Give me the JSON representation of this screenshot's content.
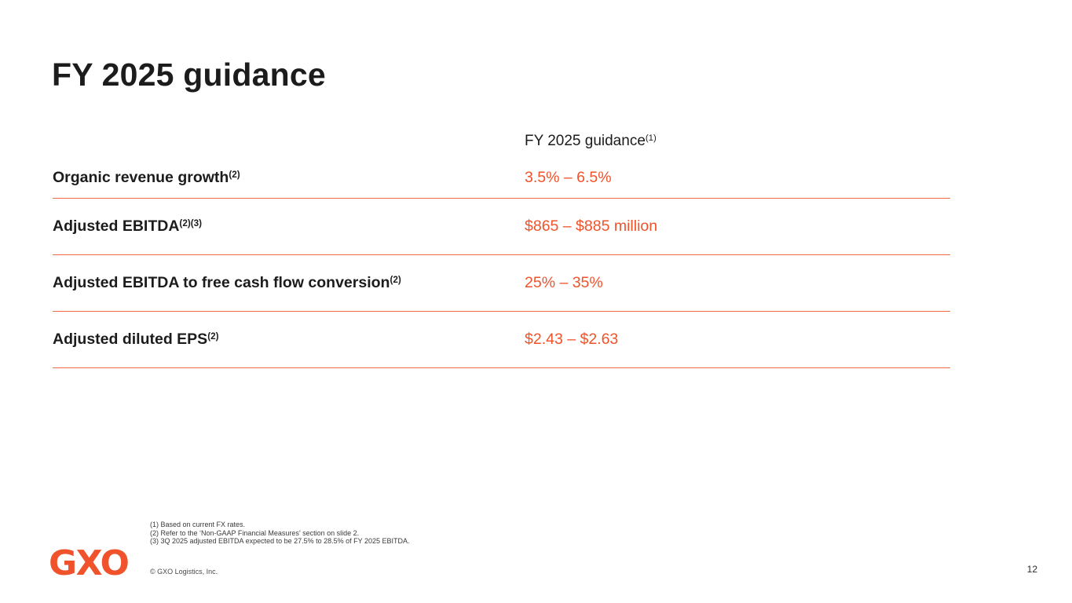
{
  "slide": {
    "title": "FY 2025 guidance",
    "logo_text": "GXO",
    "copyright": "© GXO Logistics, Inc.",
    "page_number": "12"
  },
  "table": {
    "header": {
      "label": "FY 2025 guidance",
      "superscript": "(1)"
    },
    "rows": [
      {
        "label": "Organic revenue growth",
        "superscript": "(2)",
        "value": "3.5% – 6.5%"
      },
      {
        "label": "Adjusted EBITDA",
        "superscript": "(2)(3)",
        "value": "$865 – $885 million"
      },
      {
        "label": "Adjusted EBITDA to free cash flow conversion",
        "superscript": "(2)",
        "value": "25% – 35%"
      },
      {
        "label": "Adjusted diluted EPS",
        "superscript": "(2)",
        "value": "$2.43 – $2.63"
      }
    ]
  },
  "footnotes": [
    "(1) Based on current FX rates.",
    "(2) Refer to the ‘Non-GAAP Financial Measures’ section on slide 2.",
    "(3) 3Q 2025 adjusted EBITDA expected to be 27.5% to 28.5% of FY 2025 EBITDA."
  ],
  "colors": {
    "accent": "#f0532b",
    "text": "#1c1c1c"
  }
}
